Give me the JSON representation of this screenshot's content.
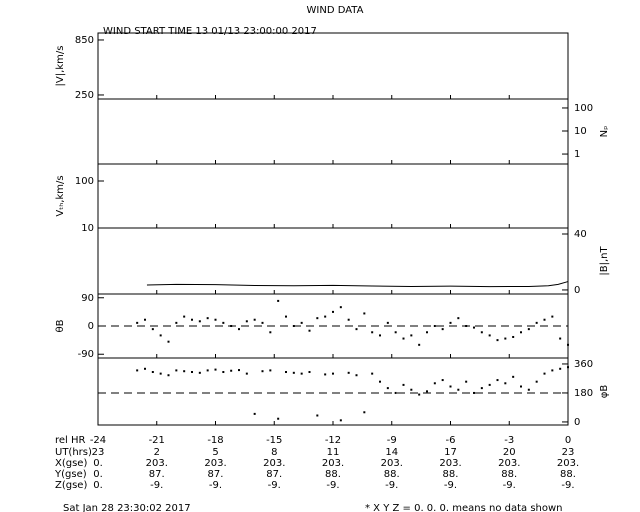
{
  "title": "WIND DATA",
  "subtitle": "WIND START TIME  13 01/13 23:00:00 2017",
  "x_axis": {
    "label": "rel HR",
    "xlim": [
      -24,
      0
    ],
    "xticks": [
      -24,
      -21,
      -18,
      -15,
      -12,
      -9,
      -6,
      -3,
      0
    ]
  },
  "ephemeris": {
    "rows": [
      {
        "label": "UT(hrs)",
        "values": [
          "23",
          "2",
          "5",
          "8",
          "11",
          "14",
          "17",
          "20",
          "23"
        ]
      },
      {
        "label": "X(gse)",
        "values": [
          "0.",
          "203.",
          "203.",
          "203.",
          "203.",
          "203.",
          "203.",
          "203.",
          "203."
        ]
      },
      {
        "label": "Y(gse)",
        "values": [
          "0.",
          "87.",
          "87.",
          "87.",
          "88.",
          "88.",
          "88.",
          "88.",
          "88."
        ]
      },
      {
        "label": "Z(gse)",
        "values": [
          "0.",
          "-9.",
          "-9.",
          "-9.",
          "-9.",
          "-9.",
          "-9.",
          "-9.",
          "-9."
        ]
      }
    ]
  },
  "footer": {
    "date": "Sat Jan 28 23:30:02 2017",
    "note": "* X Y Z = 0. 0. 0. means no data shown"
  },
  "chart_data": [
    {
      "type": "line",
      "ylabel": "|V|,km/s",
      "yaxis": "left",
      "ylim": [
        206,
        926
      ],
      "yticks": [
        850,
        250
      ]
    },
    {
      "type": "line",
      "ylabel": "Nₚ",
      "yaxis": "right",
      "yscale": "log",
      "ylim": [
        0.37,
        245
      ],
      "yticks": [
        100,
        10,
        1
      ]
    },
    {
      "type": "line",
      "ylabel": "Vₜₕ,km/s",
      "yaxis": "left",
      "yscale": "log",
      "ylim": [
        10,
        230
      ],
      "yticks": [
        100,
        10
      ]
    },
    {
      "type": "line",
      "ylabel": "|B|,nT",
      "yaxis": "right",
      "ylim": [
        -2.9,
        44.3
      ],
      "yticks": [
        40,
        0
      ],
      "color": "#000000",
      "x": [
        -21.5,
        -20,
        -18,
        -16,
        -14,
        -12,
        -10,
        -8,
        -6,
        -4,
        -2,
        -1,
        -0.5,
        0
      ],
      "values": [
        3.5,
        4,
        3.8,
        3.2,
        3,
        3.3,
        2.8,
        2.5,
        2.7,
        2.4,
        2.5,
        3,
        4,
        6
      ]
    },
    {
      "type": "scatter",
      "ylabel": "θB",
      "yaxis": "left",
      "ylim": [
        -102,
        102
      ],
      "yticks": [
        90,
        0,
        -90
      ],
      "ref_line": 0,
      "color": "#000000",
      "x": [
        -22,
        -21.6,
        -21.2,
        -20.8,
        -20.4,
        -20,
        -19.6,
        -19.2,
        -18.8,
        -18.4,
        -18,
        -17.6,
        -17.2,
        -16.8,
        -16.4,
        -16,
        -15.6,
        -15.2,
        -14.8,
        -14.4,
        -14,
        -13.6,
        -13.2,
        -12.8,
        -12.4,
        -12,
        -11.6,
        -11.2,
        -10.8,
        -10.4,
        -10,
        -9.6,
        -9.2,
        -8.8,
        -8.4,
        -8,
        -7.6,
        -7.2,
        -6.8,
        -6.4,
        -6,
        -5.6,
        -5.2,
        -4.8,
        -4.4,
        -4,
        -3.6,
        -3.2,
        -2.8,
        -2.4,
        -2,
        -1.6,
        -1.2,
        -0.8,
        -0.4,
        0
      ],
      "values": [
        10,
        20,
        -10,
        -30,
        -50,
        10,
        30,
        20,
        15,
        25,
        20,
        10,
        0,
        -10,
        15,
        20,
        10,
        -20,
        80,
        30,
        0,
        10,
        -15,
        25,
        30,
        45,
        60,
        20,
        -10,
        40,
        -20,
        -30,
        10,
        -20,
        -40,
        -30,
        -60,
        -20,
        0,
        -10,
        10,
        25,
        0,
        -5,
        -20,
        -30,
        -45,
        -40,
        -35,
        -20,
        -10,
        10,
        20,
        30,
        -40,
        -60
      ]
    },
    {
      "type": "scatter",
      "ylabel": "φB",
      "yaxis": "right",
      "ylim": [
        -19,
        397
      ],
      "yticks": [
        360,
        180,
        0
      ],
      "ref_line": 180,
      "color": "#000000",
      "x": [
        -22,
        -21.6,
        -21.2,
        -20.8,
        -20.4,
        -20,
        -19.6,
        -19.2,
        -18.8,
        -18.4,
        -18,
        -17.6,
        -17.2,
        -16.8,
        -16.4,
        -16,
        -15.6,
        -15.2,
        -14.8,
        -14.4,
        -14,
        -13.6,
        -13.2,
        -12.8,
        -12.4,
        -12,
        -11.6,
        -11.2,
        -10.8,
        -10.4,
        -10,
        -9.6,
        -9.2,
        -8.8,
        -8.4,
        -8,
        -7.6,
        -7.2,
        -6.8,
        -6.4,
        -6,
        -5.6,
        -5.2,
        -4.8,
        -4.4,
        -4,
        -3.6,
        -3.2,
        -2.8,
        -2.4,
        -2,
        -1.6,
        -1.2,
        -0.8,
        -0.4,
        0
      ],
      "values": [
        320,
        330,
        310,
        300,
        290,
        320,
        315,
        310,
        305,
        320,
        325,
        310,
        318,
        322,
        300,
        50,
        315,
        320,
        20,
        310,
        305,
        300,
        310,
        40,
        295,
        300,
        10,
        305,
        290,
        60,
        300,
        250,
        210,
        180,
        230,
        200,
        170,
        190,
        240,
        260,
        220,
        200,
        250,
        180,
        210,
        230,
        260,
        240,
        280,
        220,
        200,
        250,
        300,
        320,
        330,
        340
      ]
    }
  ]
}
